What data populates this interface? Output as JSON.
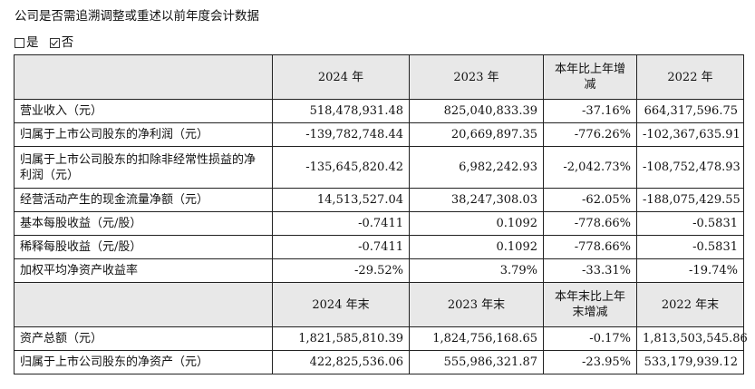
{
  "intro": "公司是否需追溯调整或重述以前年度会计数据",
  "choices": [
    {
      "label": "是",
      "checked": false
    },
    {
      "label": "否",
      "checked": true
    }
  ],
  "table1": {
    "headers": [
      "",
      "2024 年",
      "2023 年",
      "本年比上年增减",
      "2022 年"
    ],
    "rows": [
      {
        "label": "营业收入（元）",
        "values": [
          "518,478,931.48",
          "825,040,833.39",
          "-37.16%",
          "664,317,596.75"
        ]
      },
      {
        "label": "归属于上市公司股东的净利润（元）",
        "values": [
          "-139,782,748.44",
          "20,669,897.35",
          "-776.26%",
          "-102,367,635.91"
        ]
      },
      {
        "label": "归属于上市公司股东的扣除非经常性损益的净利润（元）",
        "values": [
          "-135,645,820.42",
          "6,982,242.93",
          "-2,042.73%",
          "-108,752,478.93"
        ]
      },
      {
        "label": "经营活动产生的现金流量净额（元）",
        "values": [
          "14,513,527.04",
          "38,247,308.03",
          "-62.05%",
          "-188,075,429.55"
        ]
      },
      {
        "label": "基本每股收益（元/股）",
        "values": [
          "-0.7411",
          "0.1092",
          "-778.66%",
          "-0.5831"
        ]
      },
      {
        "label": "稀释每股收益（元/股）",
        "values": [
          "-0.7411",
          "0.1092",
          "-778.66%",
          "-0.5831"
        ]
      },
      {
        "label": "加权平均净资产收益率",
        "values": [
          "-29.52%",
          "3.79%",
          "-33.31%",
          "-19.74%"
        ]
      }
    ]
  },
  "table2": {
    "headers": [
      "",
      "2024 年末",
      "2023 年末",
      "本年末比上年末增减",
      "2022 年末"
    ],
    "rows": [
      {
        "label": "资产总额（元）",
        "values": [
          "1,821,585,810.39",
          "1,824,756,168.65",
          "-0.17%",
          "1,813,503,545.86"
        ]
      },
      {
        "label": "归属于上市公司股东的净资产（元）",
        "values": [
          "422,825,536.06",
          "555,986,321.87",
          "-23.95%",
          "533,179,939.12"
        ]
      }
    ]
  }
}
